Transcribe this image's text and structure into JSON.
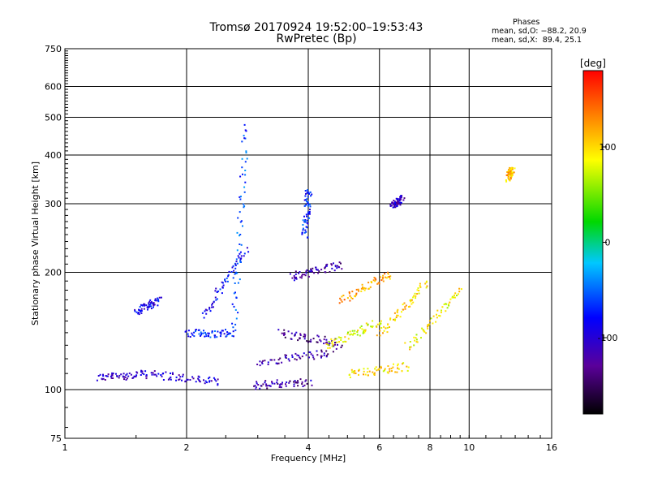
{
  "chart_data": {
    "type": "scatter",
    "title": "Tromsø 20170924  19:52:00–19:53:43",
    "subtitle": "RwPretec (Bp)",
    "xlabel": "Frequency [MHz]",
    "ylabel": "Stationary phase Virtual Height [km]",
    "x_scale": "log",
    "y_scale": "log",
    "xlim": [
      1,
      16
    ],
    "ylim": [
      75,
      750
    ],
    "x_ticks": [
      1,
      2,
      4,
      6,
      8,
      10,
      16
    ],
    "y_ticks": [
      75,
      100,
      200,
      300,
      400,
      500,
      600,
      750
    ],
    "grid": true,
    "color_variable": "phase (deg)",
    "colorbar": {
      "label": "[deg]",
      "range": [
        -180,
        180
      ],
      "ticks": [
        100,
        0,
        -100
      ],
      "colors": [
        "#000000",
        "#5a009a",
        "#0000ff",
        "#00c8ff",
        "#00d800",
        "#ffff00",
        "#ff8000",
        "#ff0000"
      ]
    },
    "stats": {
      "heading": "Phases",
      "o_mode": "mean, sd,O: −88.2, 20.9",
      "x_mode": "mean, sd,X:  89.4, 25.1"
    },
    "series": [
      {
        "type": "trace",
        "freq": [
          1.2,
          1.6
        ],
        "height": [
          108,
          110
        ],
        "phase": -110
      },
      {
        "type": "trace",
        "freq": [
          1.6,
          2.4
        ],
        "height": [
          110,
          105
        ],
        "phase": -105
      },
      {
        "type": "trace",
        "freq": [
          2.0,
          2.6
        ],
        "height": [
          140,
          140
        ],
        "phase": -70
      },
      {
        "type": "trace",
        "freq": [
          2.6,
          2.8
        ],
        "height": [
          145,
          480
        ],
        "phase": -60
      },
      {
        "type": "trace",
        "freq": [
          2.2,
          2.8
        ],
        "height": [
          155,
          230
        ],
        "phase": -80
      },
      {
        "type": "trace",
        "freq": [
          2.9,
          4.0
        ],
        "height": [
          103,
          105
        ],
        "phase": -120
      },
      {
        "type": "trace",
        "freq": [
          3.0,
          4.6
        ],
        "height": [
          118,
          125
        ],
        "phase": -120
      },
      {
        "type": "trace",
        "freq": [
          3.4,
          4.8
        ],
        "height": [
          140,
          132
        ],
        "phase": -130
      },
      {
        "type": "trace",
        "freq": [
          3.6,
          4.8
        ],
        "height": [
          195,
          210
        ],
        "phase": -120
      },
      {
        "type": "trace",
        "freq": [
          3.9,
          4.0
        ],
        "height": [
          250,
          330
        ],
        "phase": -70
      },
      {
        "type": "trace",
        "freq": [
          4.4,
          6.0
        ],
        "height": [
          130,
          150
        ],
        "phase": 80
      },
      {
        "type": "trace",
        "freq": [
          5.0,
          7.0
        ],
        "height": [
          110,
          115
        ],
        "phase": 100
      },
      {
        "type": "trace",
        "freq": [
          4.8,
          6.4
        ],
        "height": [
          170,
          200
        ],
        "phase": 120
      },
      {
        "type": "trace",
        "freq": [
          6.0,
          7.8
        ],
        "height": [
          140,
          190
        ],
        "phase": 100
      },
      {
        "type": "trace",
        "freq": [
          6.4,
          6.8
        ],
        "height": [
          300,
          310
        ],
        "phase": -110
      },
      {
        "type": "trace",
        "freq": [
          7.0,
          9.5
        ],
        "height": [
          130,
          180
        ],
        "phase": 90
      },
      {
        "type": "trace",
        "freq": [
          1.5,
          1.7
        ],
        "height": [
          160,
          170
        ],
        "phase": -90
      },
      {
        "type": "trace",
        "freq": [
          12.5,
          12.7
        ],
        "height": [
          350,
          370
        ],
        "phase": 110
      }
    ]
  }
}
